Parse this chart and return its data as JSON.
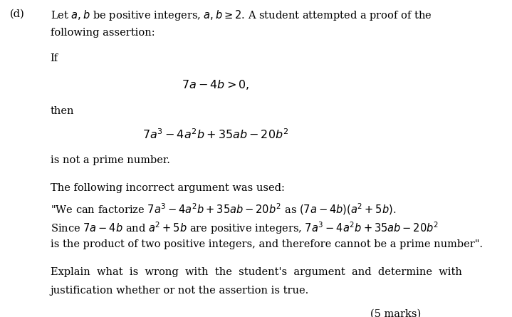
{
  "bg_color": "#ffffff",
  "text_color": "#000000",
  "fig_width": 7.19,
  "fig_height": 4.45,
  "dpi": 100,
  "label_d": "(d)",
  "line1": "Let $a, b$ be positive integers, $a, b \\geq 2$. A student attempted a proof of the",
  "line2": "following assertion:",
  "if_text": "If",
  "condition": "$7a - 4b > 0,$",
  "then_text": "then",
  "expression": "$7a^3 - 4a^2b + 35ab - 20b^2$",
  "not_prime": "is not a prime number.",
  "incorrect_head": "The following incorrect argument was used:",
  "quote_line1": "\"We can factorize $7a^3 - 4a^2b + 35ab - 20b^2$ as $(7a - 4b)(a^2 + 5b)$.",
  "quote_line2": "Since $7a - 4b$ and $a^2 + 5b$ are positive integers, $7a^3 - 4a^2b + 35ab - 20b^2$",
  "quote_line3": "is the product of two positive integers, and therefore cannot be a prime number\".",
  "explain_line1": "Explain  what  is  wrong  with  the  student's  argument  and  determine  with",
  "explain_line2": "justification whether or not the assertion is true.",
  "marks": "(5 marks)",
  "font_size": 10.5,
  "font_size_math": 10.5
}
